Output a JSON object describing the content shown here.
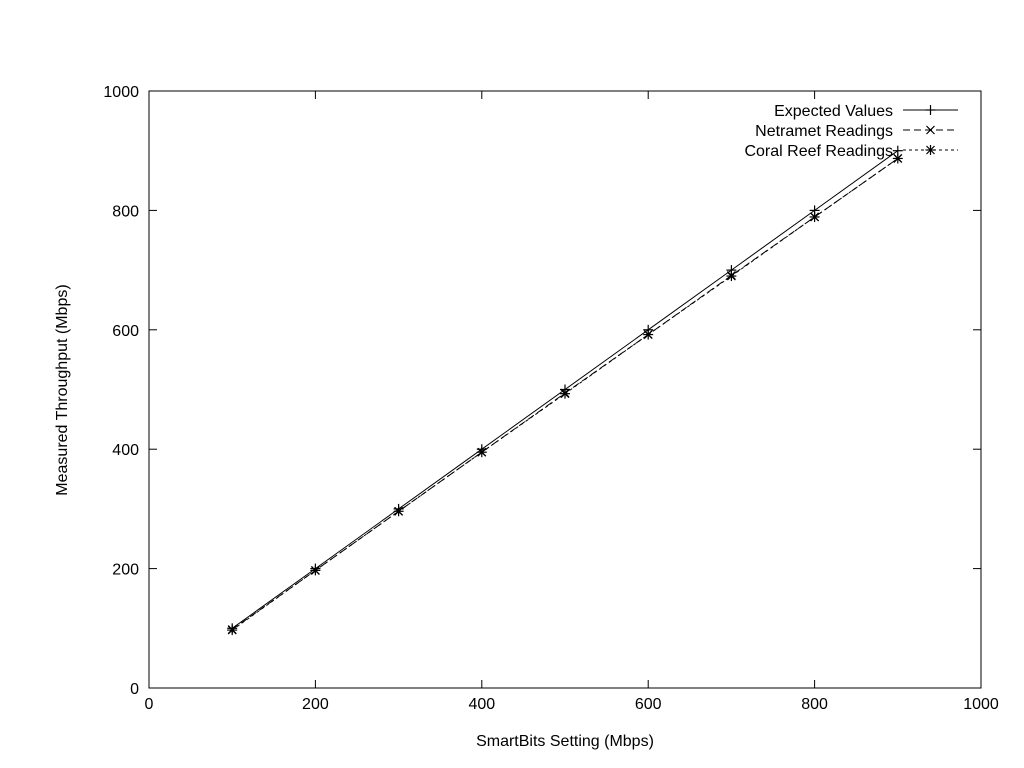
{
  "chart_data": {
    "type": "line",
    "title": "",
    "xlabel": "SmartBits Setting (Mbps)",
    "ylabel": "Measured Throughput (Mbps)",
    "xlim": [
      0,
      1000
    ],
    "ylim": [
      0,
      1000
    ],
    "xticks": [
      0,
      200,
      400,
      600,
      800,
      1000
    ],
    "yticks": [
      0,
      200,
      400,
      600,
      800,
      1000
    ],
    "grid": false,
    "legend_position": "top-right",
    "x": [
      100,
      200,
      300,
      400,
      500,
      600,
      700,
      800,
      900
    ],
    "series": [
      {
        "name": "Expected Values",
        "values": [
          100,
          200,
          300,
          400,
          500,
          600,
          700,
          800,
          900
        ],
        "line_style": "solid",
        "marker": "plus",
        "color": "#000000"
      },
      {
        "name": "Netramet Readings",
        "values": [
          98,
          197,
          296,
          395,
          494,
          592,
          691,
          789,
          887
        ],
        "line_style": "dashed",
        "marker": "cross",
        "color": "#000000"
      },
      {
        "name": "Coral Reef Readings",
        "values": [
          97,
          197,
          296,
          395,
          493,
          592,
          690,
          789,
          887
        ],
        "line_style": "dotted",
        "marker": "star",
        "color": "#000000"
      }
    ]
  }
}
